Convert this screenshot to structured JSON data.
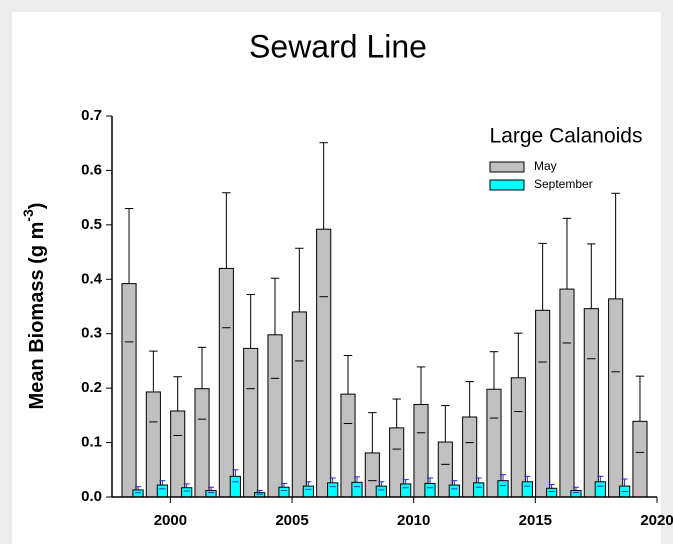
{
  "chart_data": {
    "type": "bar",
    "title": "Seward Line",
    "ylabel": [
      "Mean Biomass (g m",
      "-3",
      ")"
    ],
    "legend_title": "Large Calanoids",
    "legend": "upper right",
    "x": [
      1998,
      1999,
      2000,
      2001,
      2002,
      2003,
      2004,
      2005,
      2006,
      2007,
      2008,
      2009,
      2010,
      2011,
      2012,
      2013,
      2014,
      2015,
      2016,
      2017,
      2018,
      2019
    ],
    "series": [
      {
        "name": "May",
        "color": "#c0c0c0",
        "error_color": "#000000",
        "values": [
          0.392,
          0.193,
          0.158,
          0.199,
          0.42,
          0.273,
          0.298,
          0.34,
          0.492,
          0.189,
          0.081,
          0.127,
          0.17,
          0.101,
          0.147,
          0.198,
          0.219,
          0.343,
          0.382,
          0.346,
          0.364,
          0.139
        ],
        "err_low": [
          0.285,
          0.138,
          0.113,
          0.143,
          0.311,
          0.199,
          0.218,
          0.25,
          0.368,
          0.135,
          0.03,
          0.088,
          0.118,
          0.06,
          0.1,
          0.145,
          0.157,
          0.248,
          0.283,
          0.254,
          0.23,
          0.082
        ],
        "err_high": [
          0.53,
          0.268,
          0.221,
          0.275,
          0.559,
          0.372,
          0.402,
          0.457,
          0.651,
          0.26,
          0.155,
          0.18,
          0.239,
          0.168,
          0.212,
          0.267,
          0.301,
          0.466,
          0.512,
          0.465,
          0.558,
          0.222
        ]
      },
      {
        "name": "September",
        "color": "#00ffff",
        "error_color": "#2a2ad0",
        "values": [
          0.013,
          0.022,
          0.017,
          0.012,
          0.038,
          0.008,
          0.018,
          0.02,
          0.026,
          0.027,
          0.02,
          0.024,
          0.025,
          0.022,
          0.026,
          0.03,
          0.028,
          0.016,
          0.012,
          0.028,
          0.02,
          null
        ],
        "err_low": [
          0.008,
          0.015,
          0.011,
          0.008,
          0.028,
          0.005,
          0.012,
          0.014,
          0.019,
          0.019,
          0.013,
          0.017,
          0.017,
          0.015,
          0.018,
          0.021,
          0.02,
          0.01,
          0.008,
          0.02,
          0.01,
          null
        ],
        "err_high": [
          0.019,
          0.03,
          0.024,
          0.018,
          0.05,
          0.012,
          0.025,
          0.028,
          0.035,
          0.037,
          0.028,
          0.032,
          0.035,
          0.03,
          0.035,
          0.041,
          0.038,
          0.023,
          0.018,
          0.038,
          0.033,
          null
        ]
      }
    ],
    "xlim": [
      1997.6,
      2020
    ],
    "xticks": [
      2000,
      2005,
      2010,
      2015,
      2020
    ],
    "ylim": [
      0,
      0.7
    ],
    "yticks": [
      {
        "value": 0,
        "label": "0.0"
      },
      0.1,
      0.2,
      0.3,
      0.4,
      0.5,
      0.6,
      0.7
    ]
  }
}
